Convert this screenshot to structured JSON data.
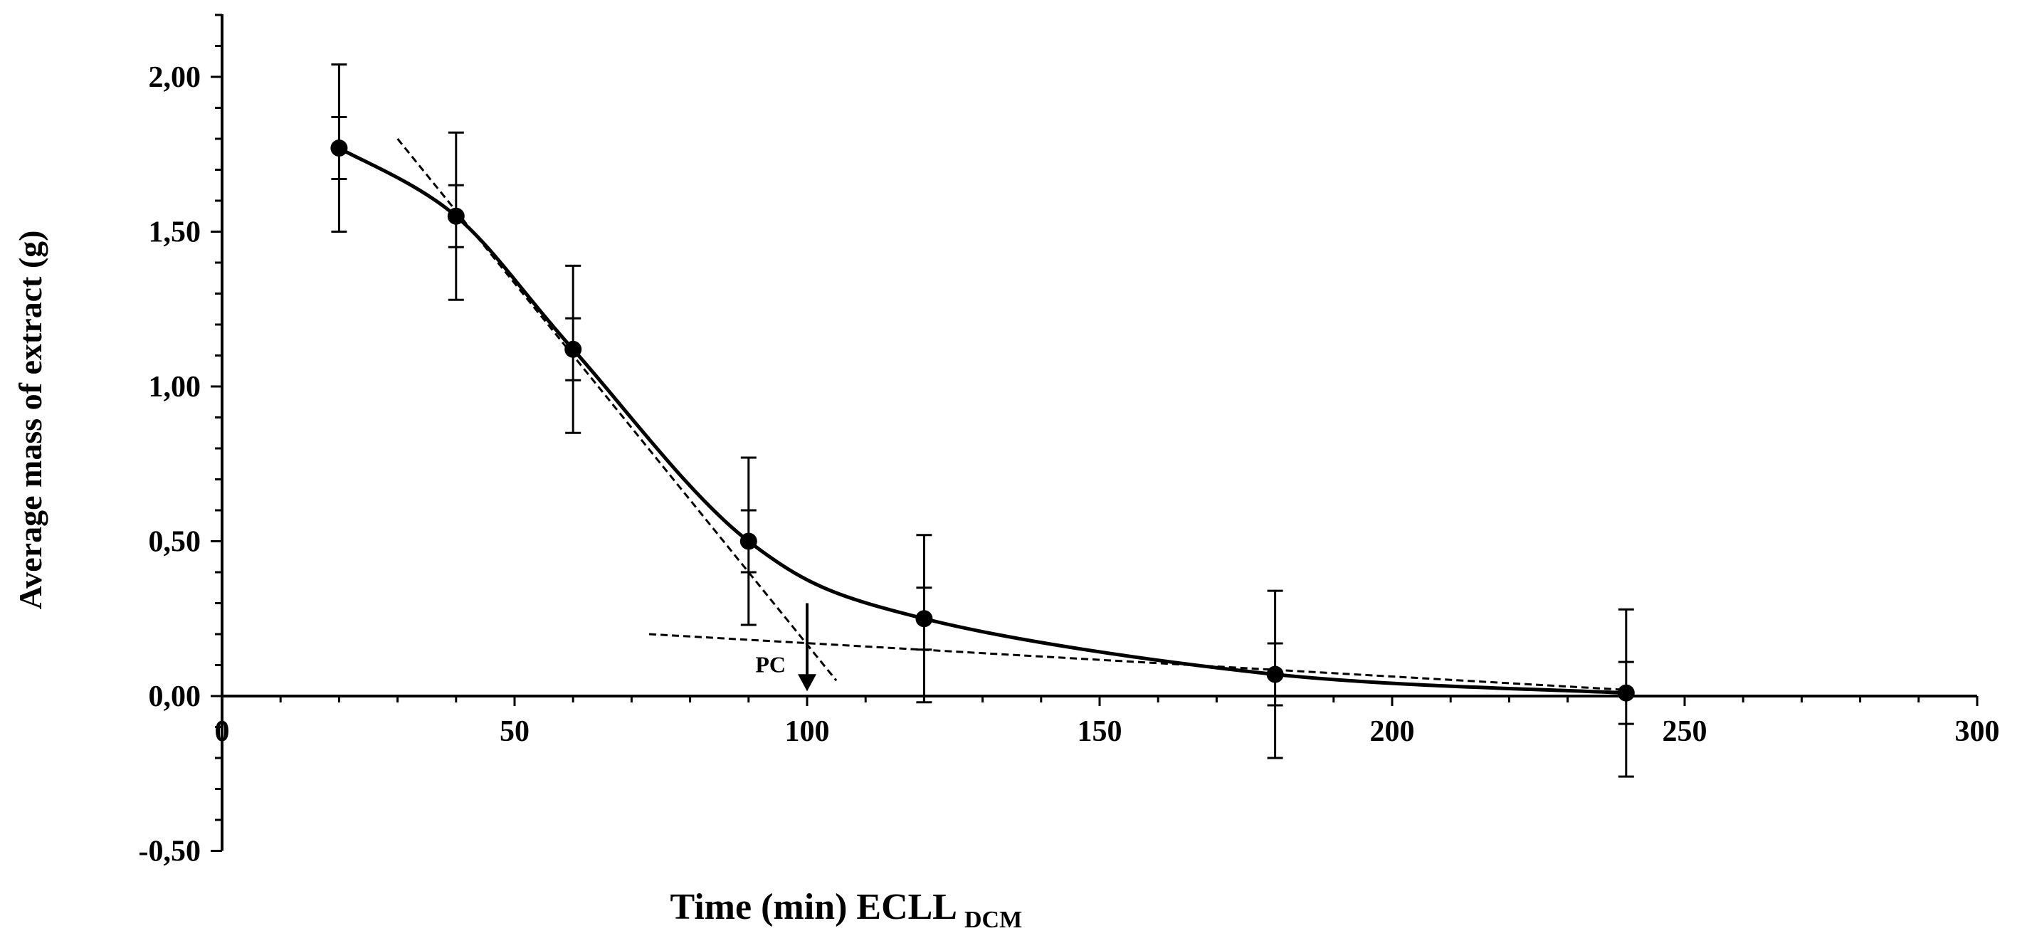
{
  "chart_data": {
    "type": "line",
    "title": "",
    "xlabel": "Time (min)  ECLL",
    "xlabel_subscript": "DCM",
    "ylabel": "Average mass of extract (g)",
    "xlim": [
      0,
      300
    ],
    "ylim": [
      -0.5,
      2.2
    ],
    "x_ticks": [
      0,
      50,
      100,
      150,
      200,
      250,
      300
    ],
    "x_tick_labels": [
      "0",
      "50",
      "100",
      "150",
      "200",
      "250",
      "300"
    ],
    "y_ticks": [
      -0.5,
      0,
      0.5,
      1,
      1.5,
      2
    ],
    "y_tick_labels": [
      "-0,50",
      "0,00",
      "0,50",
      "1,00",
      "1,50",
      "2,00"
    ],
    "grid": false,
    "series": [
      {
        "name": "Average mass of extract",
        "x": [
          20,
          40,
          60,
          90,
          120,
          180,
          240
        ],
        "y": [
          1.77,
          1.55,
          1.12,
          0.5,
          0.25,
          0.07,
          0.01
        ],
        "error": [
          0.27,
          0.27,
          0.27,
          0.27,
          0.27,
          0.27,
          0.27
        ],
        "inner_error": [
          0.1,
          0.1,
          0.1,
          0.1,
          0.1,
          0.1,
          0.1
        ]
      }
    ],
    "tangent_lines": [
      {
        "name": "steep-tangent",
        "x": [
          30,
          105
        ],
        "y": [
          1.8,
          0.05
        ],
        "style": "dashed"
      },
      {
        "name": "flat-tangent",
        "x": [
          73,
          240
        ],
        "y": [
          0.2,
          0.02
        ],
        "style": "dashed"
      }
    ],
    "annotations": [
      {
        "text": "PC",
        "x": 100,
        "y": 0.1,
        "arrow_from_y": 0.3,
        "arrow_to_y": 0.02
      }
    ]
  }
}
